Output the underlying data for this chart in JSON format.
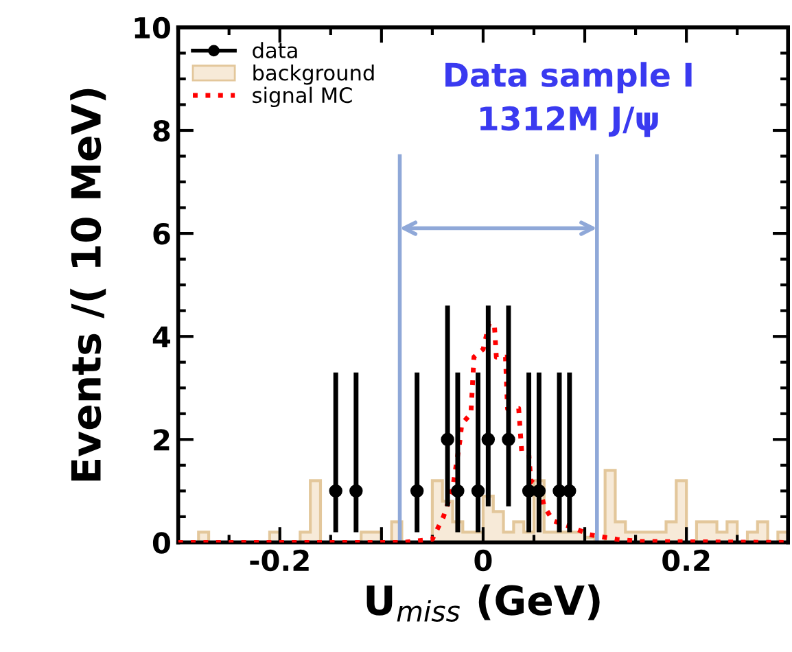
{
  "chart_data": {
    "type": "histogram",
    "xlabel": "U$_{miss}$ (GeV)",
    "ylabel": "Events /( 10 MeV)",
    "xlim": [
      -0.3,
      0.3
    ],
    "xticks": [
      {
        "value": -0.3,
        "label": null
      },
      -0.2,
      {
        "value": -0.1,
        "label": null
      },
      0,
      {
        "value": 0.1,
        "label": null
      },
      0.2,
      {
        "value": 0.3,
        "label": null
      }
    ],
    "ylim": [
      0,
      10
    ],
    "yticks": [
      0,
      2,
      4,
      6,
      8,
      10
    ],
    "bins": [
      -0.3,
      -0.29,
      -0.28,
      -0.27,
      -0.26,
      -0.25,
      -0.24,
      -0.23,
      -0.22,
      -0.21,
      -0.2,
      -0.19,
      -0.18,
      -0.17,
      -0.16,
      -0.15,
      -0.14,
      -0.13,
      -0.12,
      -0.11,
      -0.1,
      -0.09,
      -0.08,
      -0.07,
      -0.06,
      -0.05,
      -0.04,
      -0.03,
      -0.02,
      -0.01,
      0,
      0.01,
      0.02,
      0.03,
      0.04,
      0.05,
      0.06,
      0.07,
      0.08,
      0.09,
      0.1,
      0.11,
      0.12,
      0.13,
      0.14,
      0.15,
      0.16,
      0.17,
      0.18,
      0.19,
      0.2,
      0.21,
      0.22,
      0.23,
      0.24,
      0.25,
      0.26,
      0.27,
      0.28,
      0.29,
      0.3
    ],
    "series": [
      {
        "name": "data",
        "type": "scatter",
        "color": "#000000",
        "marker": "circle",
        "x": [
          -0.145,
          -0.125,
          -0.065,
          -0.035,
          -0.025,
          -0.005,
          0.005,
          0.025,
          0.045,
          0.055,
          0.075,
          0.085
        ],
        "values": [
          1,
          1,
          1,
          2,
          1,
          1,
          2,
          2,
          1,
          1,
          1,
          1
        ],
        "errors": [
          [
            0.2,
            3.3
          ],
          [
            0.2,
            3.3
          ],
          [
            0.2,
            3.3
          ],
          [
            0.7,
            4.6
          ],
          [
            0.2,
            3.3
          ],
          [
            0.2,
            3.3
          ],
          [
            0.7,
            4.6
          ],
          [
            0.7,
            4.6
          ],
          [
            0.2,
            3.3
          ],
          [
            0.2,
            3.3
          ],
          [
            0.2,
            3.3
          ],
          [
            0.2,
            3.3
          ]
        ]
      },
      {
        "name": "background",
        "color": "#f7ead8",
        "values": [
          0,
          0,
          0.2,
          0,
          0,
          0,
          0,
          0,
          0,
          0.2,
          0,
          0,
          0.2,
          1.2,
          0,
          0,
          0,
          0,
          0.2,
          0.2,
          0,
          0.4,
          0,
          0,
          0,
          1.2,
          0.8,
          0.4,
          0.2,
          0.2,
          0.9,
          0.6,
          0.2,
          0.4,
          0.2,
          1.2,
          0.2,
          0.2,
          0.2,
          0.2,
          0.1,
          0,
          1.4,
          0.4,
          0.2,
          0.2,
          0.2,
          0.2,
          0.4,
          1.2,
          0,
          0.4,
          0.4,
          0.2,
          0.4,
          0,
          0.2,
          0.4,
          0,
          0.2
        ]
      },
      {
        "name": "signal MC",
        "type": "line",
        "color": "#ff0000",
        "line_style": "dotted",
        "x": [
          -0.3,
          -0.08,
          -0.07,
          -0.05,
          -0.039,
          -0.03,
          -0.023,
          -0.021,
          -0.012,
          -0.009,
          0.0,
          0.006,
          0.011,
          0.013,
          0.022,
          0.024,
          0.035,
          0.038,
          0.045,
          0.047,
          0.056,
          0.06,
          0.069,
          0.087,
          0.105,
          0.132,
          0.155,
          0.3
        ],
        "values": [
          0,
          0,
          0.02,
          0.06,
          0.5,
          1.05,
          1.95,
          2.3,
          2.5,
          3.6,
          3.75,
          4.25,
          4.25,
          3.6,
          3.6,
          2.6,
          2.6,
          1.75,
          1.7,
          1.2,
          1.05,
          0.7,
          0.42,
          0.3,
          0.15,
          0.06,
          0.02,
          0
        ]
      }
    ],
    "ref_lines": [
      {
        "axis": "x",
        "value": -0.082,
        "color": "#8fa8d8"
      },
      {
        "axis": "x",
        "value": 0.112,
        "color": "#8fa8d8"
      }
    ],
    "annotations": [
      "Data sample I",
      "1312M J/ψ"
    ],
    "legend": "top left",
    "grid": false
  }
}
